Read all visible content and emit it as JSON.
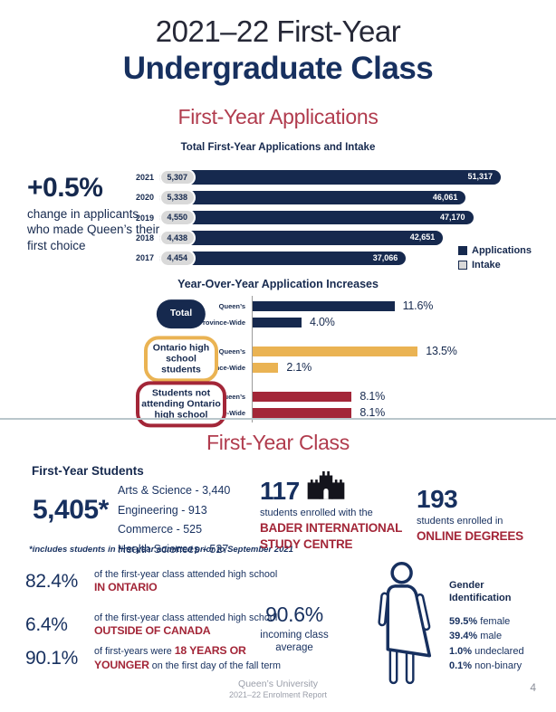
{
  "header": {
    "title_line1": "2021–22 First-Year",
    "title_line2": "Undergraduate Class"
  },
  "applications_section": {
    "heading": "First-Year Applications",
    "highlight": {
      "value": "+0.5%",
      "description": "change in applicants who made Queen’s their first choice"
    },
    "chart_title": "Total First-Year Applications and Intake",
    "legend": [
      {
        "label": "Applications",
        "color": "#16294E",
        "outlined": false
      },
      {
        "label": "Intake",
        "color": "#D9D9D9",
        "outlined": true
      }
    ]
  },
  "increases_section": {
    "heading": "Year-Over-Year Application Increases"
  },
  "chart_data": [
    {
      "type": "bar",
      "orientation": "horizontal",
      "title": "Total First-Year Applications and Intake",
      "categories": [
        "2021",
        "2020",
        "2019",
        "2018",
        "2017"
      ],
      "series": [
        {
          "name": "Applications",
          "color": "#16294E",
          "values": [
            51317,
            46061,
            47170,
            42651,
            37066
          ]
        },
        {
          "name": "Intake",
          "color": "#D9D9D9",
          "values": [
            5307,
            5338,
            4550,
            4438,
            4454
          ]
        }
      ],
      "xlim": [
        0,
        52000
      ],
      "legend_position": "bottom-right",
      "grid": false
    },
    {
      "type": "bar",
      "orientation": "horizontal",
      "title": "Year-Over-Year Application Increases",
      "value_suffix": "%",
      "xlim": [
        0,
        14
      ],
      "grid": false,
      "groups": [
        {
          "label": "Total",
          "badge_style": "navy-filled",
          "color": "#16294E",
          "bars": [
            {
              "label": "Queen’s",
              "value": 11.6
            },
            {
              "label": "Province-Wide",
              "value": 4.0
            }
          ]
        },
        {
          "label": "Ontario high school students",
          "badge_style": "gold-outline",
          "color": "#EAB353",
          "bars": [
            {
              "label": "Queen’s",
              "value": 13.5
            },
            {
              "label": "Province-Wide",
              "value": 2.1
            }
          ]
        },
        {
          "label": "Students not attending Ontario high school",
          "badge_style": "red-outline",
          "color": "#A32638",
          "bars": [
            {
              "label": "Queen’s",
              "value": 8.1
            },
            {
              "label": "Province-Wide",
              "value": 8.1
            }
          ]
        }
      ]
    }
  ],
  "class_section": {
    "heading": "First-Year Class",
    "students_label": "First-Year Students",
    "total_value": "5,405*",
    "breakdown": [
      "Arts & Science - 3,440",
      "Engineering - 913",
      "Commerce - 525",
      "Health Sciences - 527"
    ],
    "footnote": "*includes students in first year admitted prior to September 2021",
    "bader": {
      "value": "117",
      "text": "students enrolled with the",
      "name": "BADER INTERNATIONAL STUDY CENTRE"
    },
    "online": {
      "value": "193",
      "text": "students enrolled in",
      "name": "ONLINE DEGREES"
    },
    "stats": [
      {
        "value": "82.4%",
        "pre": "of the first-year class attended high school ",
        "em": "IN ONTARIO",
        "post": ""
      },
      {
        "value": "6.4%",
        "pre": "of the first-year class attended high school ",
        "em": "OUTSIDE OF CANADA",
        "post": ""
      },
      {
        "value": "90.1%",
        "pre": "of first-years were ",
        "em": "18 YEARS OR YOUNGER",
        "post": " on the first day of the fall term"
      }
    ],
    "average": {
      "value": "90.6%",
      "label": "incoming class average"
    },
    "gender": {
      "heading": "Gender Identification",
      "rows": [
        {
          "value": "59.5%",
          "label": "female"
        },
        {
          "value": "39.4%",
          "label": "male"
        },
        {
          "value": "1.0%",
          "label": "undeclared"
        },
        {
          "value": "0.1%",
          "label": "non-binary"
        }
      ]
    }
  },
  "footer": {
    "line1": "Queen’s University",
    "line2": "2021–22 Enrolment Report",
    "page_number": "4"
  },
  "colors": {
    "navy": "#16294E",
    "navy_text": "#17305F",
    "red_heading": "#B13C4E",
    "red_accent": "#A32638",
    "gold": "#EAB353",
    "intake_gray": "#D9D9D9"
  }
}
